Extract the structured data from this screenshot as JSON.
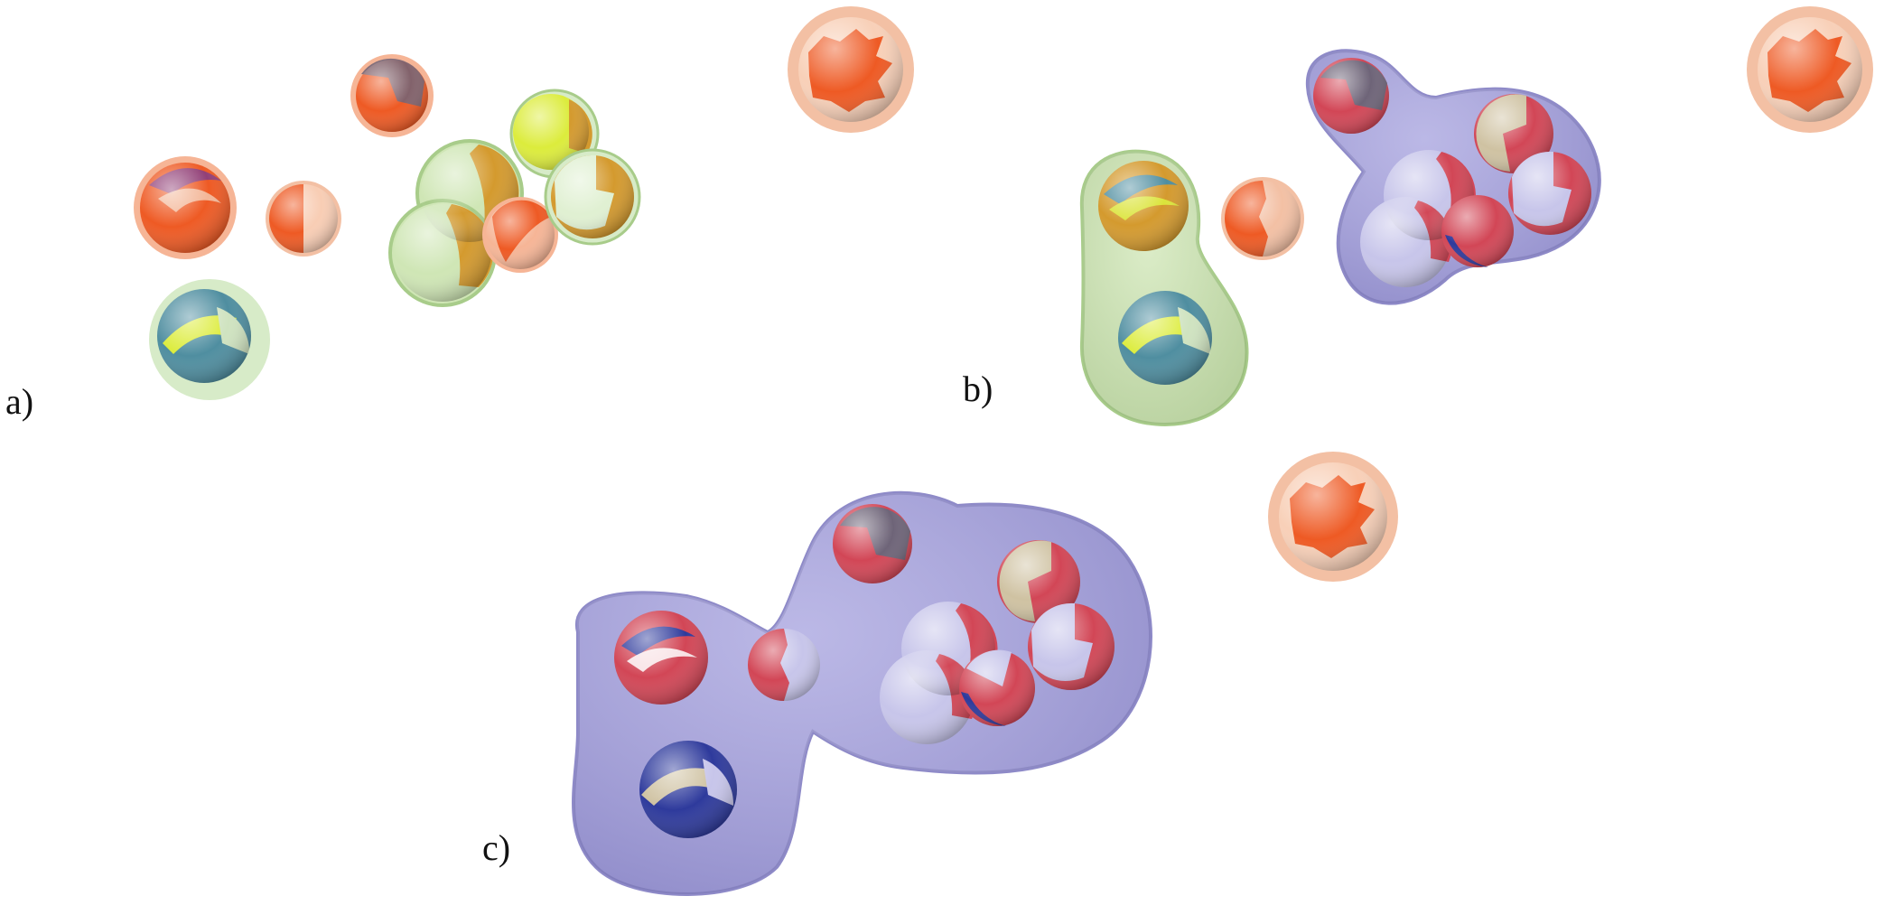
{
  "figure": {
    "panels": [
      {
        "id": "a",
        "label": "a)"
      },
      {
        "id": "b",
        "label": "b)"
      },
      {
        "id": "c",
        "label": "c)"
      }
    ]
  },
  "colors": {
    "sphere_orange": "#ee5a24",
    "sphere_peach": "#f6b596",
    "sphere_rim_orange": "#f3c0a4",
    "sphere_yellow": "#dcec3c",
    "sphere_gold": "#d49a2e",
    "sphere_teal": "#4f8ea0",
    "sphere_mint": "#d7ebc8",
    "sphere_lavender": "#c7c5ea",
    "sphere_red": "#d24656",
    "sphere_blue": "#2e3a9c",
    "sphere_tan": "#cfc2a2",
    "sphere_gray": "#6e6478",
    "cluster_green_fill": "#cfe6b5",
    "cluster_green_edge": "#a8cc8a",
    "cluster_purple_fill": "#a8a4df",
    "cluster_purple_edge": "#8e8ac8"
  }
}
